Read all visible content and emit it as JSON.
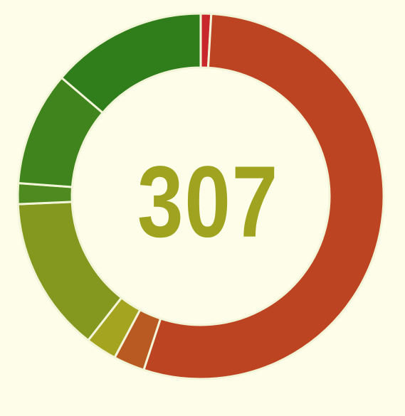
{
  "chart_data": {
    "type": "donut",
    "center_label": "307",
    "segments": [
      {
        "value": 1.0,
        "color": "#c8282c"
      },
      {
        "value": 59.0,
        "color": "#bd4422"
      },
      {
        "value": 3.0,
        "color": "#b85a22"
      },
      {
        "value": 3.0,
        "color": "#a4a421"
      },
      {
        "value": 15.0,
        "color": "#84971f"
      },
      {
        "value": 2.0,
        "color": "#4e8a1f"
      },
      {
        "value": 11.0,
        "color": "#3f841d"
      },
      {
        "value": 15.0,
        "color": "#2f7d1b"
      }
    ],
    "separator_color": "#f3f5d9"
  }
}
